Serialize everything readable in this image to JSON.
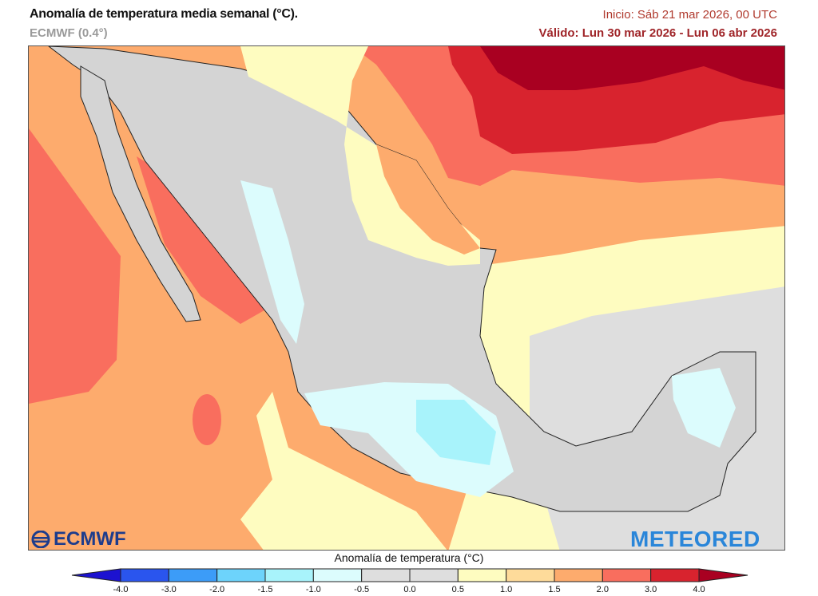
{
  "header": {
    "title": "Anomalía de temperatura media semanal (°C).",
    "model": "ECMWF (0.4°)",
    "init": "Inicio: Sáb 21 mar 2026, 00 UTC",
    "valid": "Válido: Lun 30 mar 2026 - Lun 06 abr 2026"
  },
  "colorbar": {
    "title": "Anomalía de temperatura (°C)",
    "labels": [
      "-4.0",
      "-3.0",
      "-2.0",
      "-1.5",
      "-1.0",
      "-0.5",
      "0.0",
      "0.5",
      "1.0",
      "1.5",
      "2.0",
      "3.0",
      "4.0"
    ],
    "colors": [
      "#2a55ee",
      "#3c9cf8",
      "#6dd3fb",
      "#a8f3fb",
      "#dcfcfd",
      "#dedede",
      "#dedede",
      "#fefcc0",
      "#fedb9a",
      "#fdab6d",
      "#f96e5e",
      "#d8232e"
    ],
    "under_color": "#1c12d0",
    "over_color": "#a90021"
  },
  "logos": {
    "left": "ECMWF",
    "right": "METEORED"
  }
}
